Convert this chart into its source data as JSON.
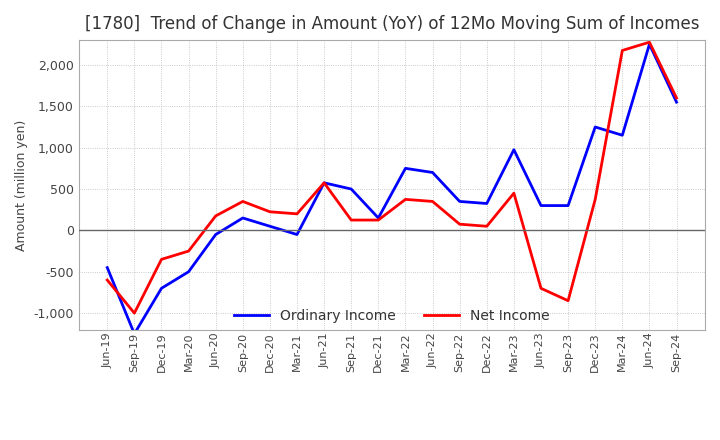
{
  "title": "[1780]  Trend of Change in Amount (YoY) of 12Mo Moving Sum of Incomes",
  "ylabel": "Amount (million yen)",
  "x_labels": [
    "Jun-19",
    "Sep-19",
    "Dec-19",
    "Mar-20",
    "Jun-20",
    "Sep-20",
    "Dec-20",
    "Mar-21",
    "Jun-21",
    "Sep-21",
    "Dec-21",
    "Mar-22",
    "Jun-22",
    "Sep-22",
    "Dec-22",
    "Mar-23",
    "Jun-23",
    "Sep-23",
    "Dec-23",
    "Mar-24",
    "Jun-24",
    "Sep-24"
  ],
  "ordinary_income": [
    -450,
    -1250,
    -700,
    -500,
    -50,
    150,
    50,
    -50,
    575,
    500,
    150,
    750,
    700,
    350,
    325,
    975,
    300,
    300,
    1250,
    1150,
    2250,
    1550
  ],
  "net_income": [
    -600,
    -1000,
    -350,
    -250,
    175,
    350,
    225,
    200,
    575,
    125,
    125,
    375,
    350,
    75,
    50,
    450,
    -700,
    -850,
    375,
    2175,
    2275,
    1600
  ],
  "ordinary_color": "#0000ff",
  "net_color": "#ff0000",
  "ylim": [
    -1200,
    2300
  ],
  "yticks": [
    -1000,
    -500,
    0,
    500,
    1000,
    1500,
    2000
  ],
  "background_color": "#ffffff",
  "grid_color": "#bbbbbb",
  "title_fontsize": 12,
  "legend_labels": [
    "Ordinary Income",
    "Net Income"
  ]
}
